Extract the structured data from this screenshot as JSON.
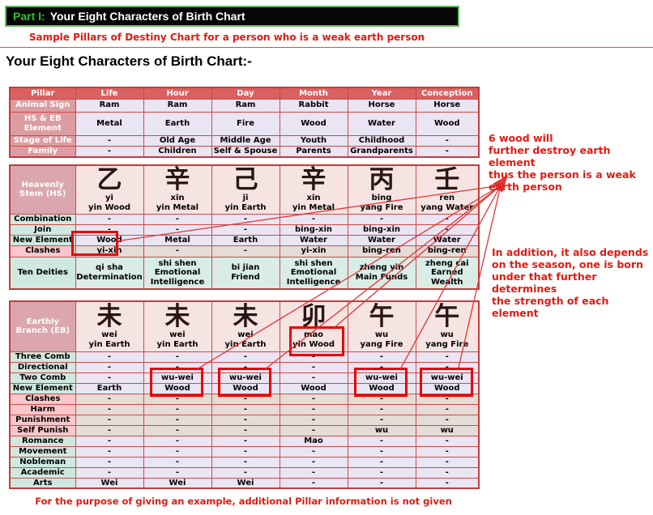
{
  "header": {
    "part_label": "Part I:",
    "title": "Your Eight Characters of Birth Chart"
  },
  "subtitle": "Sample Pillars of Destiny Chart for a person who is a weak earth person",
  "section_heading": "Your Eight Characters of Birth Chart:-",
  "pillar_table": {
    "columns": [
      "Pillar",
      "Life",
      "Hour",
      "Day",
      "Month",
      "Year",
      "Conception"
    ],
    "rows": [
      {
        "label": "Animal Sign",
        "values": [
          "Ram",
          "Ram",
          "Ram",
          "Rabbit",
          "Horse",
          "Horse"
        ]
      },
      {
        "label": "HS & EB Element",
        "values": [
          "Metal",
          "Earth",
          "Fire",
          "Wood",
          "Water",
          "Wood"
        ]
      },
      {
        "label": "Stage of Life",
        "values": [
          "-",
          "Old Age",
          "Middle Age",
          "Youth",
          "Childhood",
          "-"
        ]
      },
      {
        "label": "Family",
        "values": [
          "-",
          "Children",
          "Self & Spouse",
          "Parents",
          "Grandparents",
          "-"
        ]
      }
    ]
  },
  "heavenly_stem_table": {
    "corner_label": "Heavenly Stem (HS)",
    "stems": [
      {
        "char": "乙",
        "pinyin": "yi",
        "element": "yin Wood"
      },
      {
        "char": "辛",
        "pinyin": "xin",
        "element": "yin Metal"
      },
      {
        "char": "己",
        "pinyin": "ji",
        "element": "yin Earth"
      },
      {
        "char": "辛",
        "pinyin": "xin",
        "element": "yin Metal"
      },
      {
        "char": "丙",
        "pinyin": "bing",
        "element": "yang Fire"
      },
      {
        "char": "壬",
        "pinyin": "ren",
        "element": "yang Water"
      }
    ],
    "rows": [
      {
        "label": "Combination",
        "label_style": "teal",
        "cell_style": "lav",
        "values": [
          "-",
          "-",
          "-",
          "-",
          "-",
          "-"
        ]
      },
      {
        "label": "Join",
        "label_style": "teal",
        "cell_style": "lav",
        "values": [
          "-",
          "-",
          "-",
          "bing-xin",
          "bing-xin",
          "-"
        ]
      },
      {
        "label": "New Element",
        "label_style": "teal",
        "cell_style": "lav",
        "values": [
          "Wood",
          "Metal",
          "Earth",
          "Water",
          "Water",
          "Water"
        ]
      },
      {
        "label": "Clashes",
        "label_style": "pinkrow",
        "cell_style": "tan",
        "values": [
          "yi-xin",
          "-",
          "-",
          "yi-xin",
          "bing-ren",
          "bing-ren"
        ]
      },
      {
        "label": "Ten Deities",
        "label_style": "teal",
        "cell_style": "tealcell",
        "values": [
          "qi sha\nDetermination",
          "shi shen\nEmotional\nIntelligence",
          "bi jian\nFriend",
          "shi shen\nEmotional\nIntelligence",
          "zheng yin\nMain Funds",
          "zheng cai\nEarned\nWealth"
        ]
      }
    ]
  },
  "earthly_branch_table": {
    "corner_label": "Earthly Branch (EB)",
    "branches": [
      {
        "char": "未",
        "pinyin": "wei",
        "element": "yin Earth"
      },
      {
        "char": "未",
        "pinyin": "wei",
        "element": "yin Earth"
      },
      {
        "char": "未",
        "pinyin": "wei",
        "element": "yin Earth"
      },
      {
        "char": "卯",
        "pinyin": "mao",
        "element": "yin Wood"
      },
      {
        "char": "午",
        "pinyin": "wu",
        "element": "yang Fire"
      },
      {
        "char": "午",
        "pinyin": "wu",
        "element": "yang Fire"
      }
    ],
    "rows": [
      {
        "label": "Three Comb",
        "label_style": "teal",
        "cell_style": "lav",
        "values": [
          "-",
          "-",
          "-",
          "-",
          "-",
          "-"
        ]
      },
      {
        "label": "Directional",
        "label_style": "teal",
        "cell_style": "lav",
        "values": [
          "-",
          "-",
          "-",
          "-",
          "-",
          "-"
        ]
      },
      {
        "label": "Two Comb",
        "label_style": "teal",
        "cell_style": "lav",
        "values": [
          "-",
          "wu-wei",
          "wu-wei",
          "-",
          "wu-wei",
          "wu-wei"
        ]
      },
      {
        "label": "New Element",
        "label_style": "teal",
        "cell_style": "lav",
        "values": [
          "Earth",
          "Wood",
          "Wood",
          "Wood",
          "Wood",
          "Wood"
        ]
      },
      {
        "label": "Clashes",
        "label_style": "pinkrow",
        "cell_style": "tan",
        "values": [
          "-",
          "-",
          "-",
          "-",
          "-",
          "-"
        ]
      },
      {
        "label": "Harm",
        "label_style": "pinkrow",
        "cell_style": "tan",
        "values": [
          "-",
          "-",
          "-",
          "-",
          "-",
          "-"
        ]
      },
      {
        "label": "Punishment",
        "label_style": "pinkrow",
        "cell_style": "tan",
        "values": [
          "-",
          "-",
          "-",
          "-",
          "-",
          "-"
        ]
      },
      {
        "label": "Self Punish",
        "label_style": "pinkrow",
        "cell_style": "tan",
        "values": [
          "-",
          "-",
          "-",
          "-",
          "wu",
          "wu"
        ]
      },
      {
        "label": "Romance",
        "label_style": "teal",
        "cell_style": "lav",
        "values": [
          "-",
          "-",
          "-",
          "Mao",
          "-",
          "-"
        ]
      },
      {
        "label": "Movement",
        "label_style": "teal",
        "cell_style": "lav",
        "values": [
          "-",
          "-",
          "-",
          "-",
          "-",
          "-"
        ]
      },
      {
        "label": "Nobleman",
        "label_style": "teal",
        "cell_style": "lav",
        "values": [
          "-",
          "-",
          "-",
          "-",
          "-",
          "-"
        ]
      },
      {
        "label": "Academic",
        "label_style": "teal",
        "cell_style": "lav",
        "values": [
          "-",
          "-",
          "-",
          "-",
          "-",
          "-"
        ]
      },
      {
        "label": "Arts",
        "label_style": "teal",
        "cell_style": "lav",
        "values": [
          "Wei",
          "Wei",
          "Wei",
          "-",
          "-",
          "-"
        ]
      }
    ]
  },
  "highlights": [
    "HS Life pillar: New Element Wood / Clashes yi-xin",
    "EB Month pillar: mao yin Wood",
    "EB Hour pillar: Two Comb wu-wei / New Element Wood",
    "EB Day pillar: Two Comb wu-wei / New Element Wood",
    "EB Year pillar: Two Comb wu-wei / New Element Wood",
    "EB Conception pillar: Two Comb wu-wei / New Element Wood"
  ],
  "annotations": {
    "note1": "6 wood will\nfurther destroy earth element\nthus the person is a weak\nearth person",
    "note2": "In addition, it also depends\non the season, one is born\nunder that further determines\nthe strength of each element",
    "footer": "For the purpose of giving an example, additional Pillar information is not given"
  },
  "colors": {
    "table_header": "#d96161",
    "row_label_pink": "#dc9da2",
    "corner_pink": "#dba6ad",
    "teal_label": "#cfe9e0",
    "pink_label": "#f9c7cb",
    "lavender_cell": "#eae5f3",
    "tan_cell": "#e5dbd7",
    "teal_cell": "#d9ece6",
    "stem_cell": "#f5e4e2",
    "grid_red": "#c94b4b",
    "annotation_red": "#e11b12",
    "highlight_red": "#ea0000",
    "bar_green_border": "#5abf5a",
    "part_label_green": "#2cc32c"
  }
}
